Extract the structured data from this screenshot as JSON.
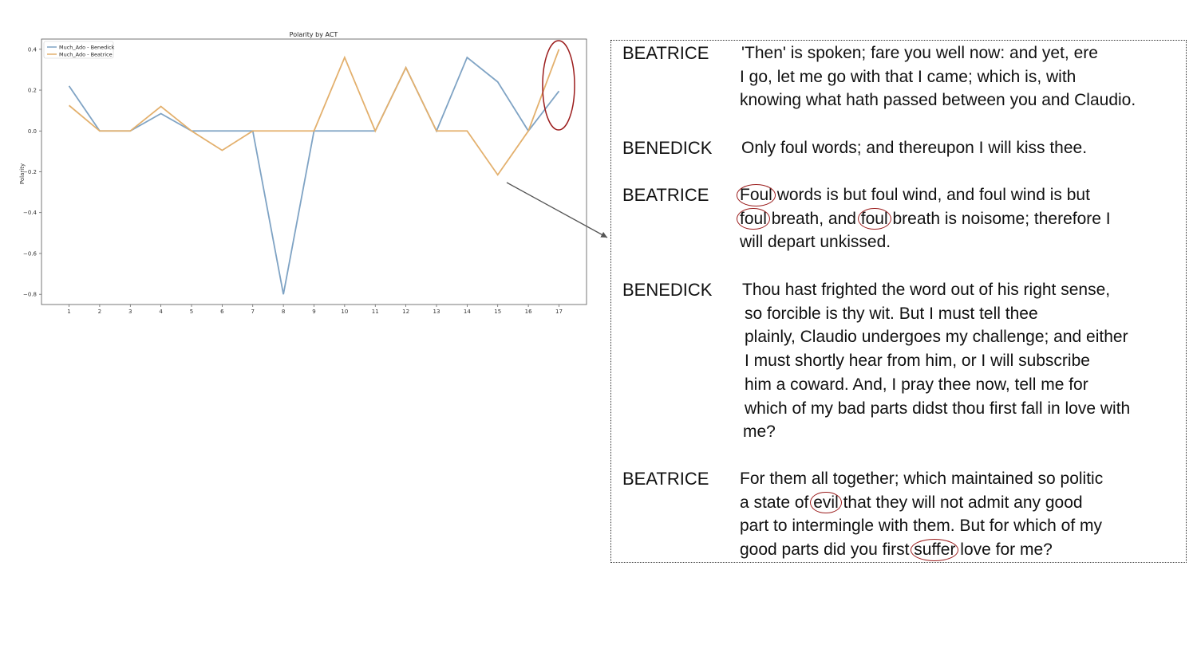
{
  "chart_data": {
    "type": "line",
    "title": "Polarity by ACT",
    "xlabel": "",
    "ylabel": "Polarity",
    "categories": [
      "1",
      "2",
      "3",
      "4",
      "5",
      "6",
      "7",
      "8",
      "9",
      "10",
      "11",
      "12",
      "13",
      "14",
      "15",
      "16",
      "17"
    ],
    "x": [
      1,
      2,
      3,
      4,
      5,
      6,
      7,
      8,
      9,
      10,
      11,
      12,
      13,
      14,
      15,
      16,
      17
    ],
    "yticks": [
      "0.4",
      "0.2",
      "0.0",
      "−0.2",
      "−0.4",
      "−0.6",
      "−0.8"
    ],
    "ylim": [
      -0.85,
      0.45
    ],
    "xlim": [
      0.1,
      17.9
    ],
    "grid": false,
    "legend_position": "top-left",
    "series": [
      {
        "name": "Much_Ado - Benedick",
        "color": "#7fa3c4",
        "values": [
          0.22,
          0.0,
          0.0,
          0.085,
          0.0,
          0.0,
          0.0,
          -0.8,
          0.0,
          0.0,
          0.0,
          0.31,
          0.0,
          0.36,
          0.24,
          0.0,
          0.195
        ]
      },
      {
        "name": "Much_Ado - Beatrice",
        "color": "#e3b06d",
        "values": [
          0.125,
          0.0,
          0.0,
          0.12,
          0.0,
          -0.095,
          0.0,
          0.0,
          0.0,
          0.36,
          0.0,
          0.31,
          0.0,
          0.0,
          -0.215,
          0.0,
          0.4
        ]
      }
    ],
    "highlight_color": "#9b1c1c"
  },
  "dialogue": [
    {
      "speaker": "BEATRICE",
      "lines": [
        [
          {
            "t": "'Then' is spoken; fare you well now: and yet, ere"
          }
        ],
        [
          {
            "t": "I go, let me go with that I came; which is, with"
          }
        ],
        [
          {
            "t": "knowing what hath passed between you and Claudio."
          }
        ]
      ]
    },
    {
      "speaker": "BENEDICK",
      "lines": [
        [
          {
            "t": "Only foul words; and thereupon I will kiss thee."
          }
        ]
      ]
    },
    {
      "speaker": "BEATRICE",
      "lines": [
        [
          {
            "t": "Foul",
            "hl": true
          },
          {
            "t": " words is but foul wind, and foul wind is but"
          }
        ],
        [
          {
            "t": "foul",
            "hl": true
          },
          {
            "t": " breath, and "
          },
          {
            "t": "foul",
            "hl": true
          },
          {
            "t": " breath is noisome; therefore I"
          }
        ],
        [
          {
            "t": "will depart unkissed."
          }
        ]
      ]
    },
    {
      "speaker": "BENEDICK",
      "lines": [
        [
          {
            "t": "Thou hast frighted the word out of his right sense,"
          }
        ],
        [
          {
            "t": "so forcible is thy wit. But I must tell thee"
          }
        ],
        [
          {
            "t": "plainly, Claudio undergoes my challenge; and either"
          }
        ],
        [
          {
            "t": "I must shortly hear from him, or I will subscribe"
          }
        ],
        [
          {
            "t": "him a coward. And, I pray thee now, tell me for"
          }
        ],
        [
          {
            "t": "which of my bad parts didst thou first fall in love with"
          }
        ],
        [
          {
            "t": "me?"
          }
        ]
      ]
    },
    {
      "speaker": "BEATRICE",
      "lines": [
        [
          {
            "t": "For them all together; which maintained so politic"
          }
        ],
        [
          {
            "t": "a state of "
          },
          {
            "t": "evil",
            "hl": true
          },
          {
            "t": " that they will not admit any good"
          }
        ],
        [
          {
            "t": "part to intermingle with them. But for which of my"
          }
        ],
        [
          {
            "t": "good parts did you first "
          },
          {
            "t": "suffer",
            "hl": true
          },
          {
            "t": " love for me?"
          }
        ]
      ]
    }
  ]
}
